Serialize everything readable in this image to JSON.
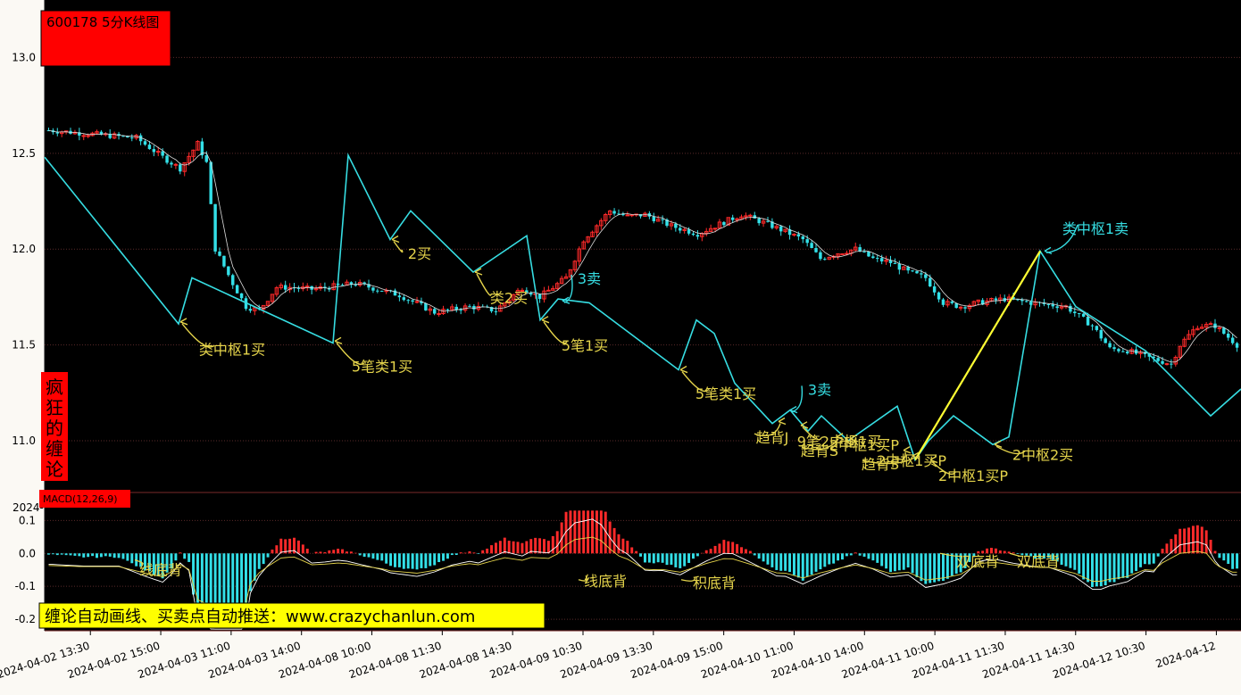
{
  "title_box": {
    "text": "600178 5分K线图"
  },
  "side_badge": {
    "chars": [
      "疯",
      "狂",
      "的",
      "缠",
      "论"
    ]
  },
  "macd_label": {
    "text": "MACD(12,26,9)"
  },
  "overflow_label": "2024-",
  "banner": {
    "text": "缠论自动画线、买卖点自动推送：www.crazychanlun.com"
  },
  "colors": {
    "background": "#000000",
    "up": "#ff2a2a",
    "down": "#33e0e8",
    "stroke": "#36dde2",
    "segment": "#ffff33",
    "buy_label": "#e5d44b",
    "sell_label": "#36dde2",
    "badge": "#ff0000",
    "banner": "#ffff00",
    "grid": "#5a2a2a"
  },
  "chart_data": {
    "type": "candlestick",
    "price_axis": {
      "ticks": [
        11.0,
        11.5,
        12.0,
        12.5,
        13.0
      ],
      "tick_labels": [
        "11.0",
        "11.5",
        "12.0",
        "12.5",
        "13.0"
      ],
      "range": [
        10.73,
        13.3
      ]
    },
    "macd_axis": {
      "ticks": [
        0.1,
        0.0,
        -0.1,
        -0.2
      ],
      "tick_labels": [
        "0.1",
        "0.0",
        "-0.1",
        "-0.2"
      ],
      "range": [
        -0.235,
        0.185
      ]
    },
    "x_tick_labels": [
      "2024-04-02 13:30",
      "2024-04-02 15:00",
      "2024-04-03 11:00",
      "2024-04-03 14:00",
      "2024-04-08 10:00",
      "2024-04-08 11:30",
      "2024-04-08 14:30",
      "2024-04-09 10:30",
      "2024-04-09 13:30",
      "2024-04-09 15:00",
      "2024-04-10 11:00",
      "2024-04-10 14:00",
      "2024-04-11 10:00",
      "2024-04-11 11:30",
      "2024-04-11 14:30",
      "2024-04-12 10:30",
      "2024-04-12"
    ],
    "bar_count": 272,
    "price_pivots": [
      [
        0,
        12.62
      ],
      [
        20,
        12.58
      ],
      [
        26,
        12.48
      ],
      [
        30,
        12.42
      ],
      [
        34,
        12.55
      ],
      [
        36,
        12.45
      ],
      [
        38,
        12.0
      ],
      [
        42,
        11.82
      ],
      [
        45,
        11.7
      ],
      [
        48,
        11.68
      ],
      [
        52,
        11.8
      ],
      [
        55,
        11.8
      ],
      [
        60,
        11.79
      ],
      [
        70,
        11.82
      ],
      [
        80,
        11.76
      ],
      [
        88,
        11.67
      ],
      [
        96,
        11.7
      ],
      [
        102,
        11.68
      ],
      [
        108,
        11.8
      ],
      [
        112,
        11.75
      ],
      [
        118,
        11.85
      ],
      [
        122,
        12.05
      ],
      [
        128,
        12.2
      ],
      [
        132,
        12.17
      ],
      [
        136,
        12.18
      ],
      [
        142,
        12.12
      ],
      [
        148,
        12.08
      ],
      [
        154,
        12.14
      ],
      [
        158,
        12.18
      ],
      [
        164,
        12.13
      ],
      [
        172,
        12.05
      ],
      [
        176,
        11.95
      ],
      [
        180,
        11.98
      ],
      [
        184,
        12.0
      ],
      [
        188,
        11.95
      ],
      [
        192,
        11.93
      ],
      [
        196,
        11.88
      ],
      [
        200,
        11.85
      ],
      [
        204,
        11.72
      ],
      [
        208,
        11.7
      ],
      [
        212,
        11.72
      ],
      [
        218,
        11.74
      ],
      [
        224,
        11.72
      ],
      [
        232,
        11.7
      ],
      [
        238,
        11.6
      ],
      [
        242,
        11.48
      ],
      [
        246,
        11.47
      ],
      [
        250,
        11.44
      ],
      [
        256,
        11.4
      ],
      [
        258,
        11.5
      ],
      [
        262,
        11.6
      ],
      [
        266,
        11.6
      ],
      [
        271,
        11.5
      ]
    ],
    "strokes": [
      [
        50,
        12.48
      ],
      [
        200,
        11.61
      ],
      [
        215,
        11.85
      ],
      [
        373,
        11.51
      ],
      [
        390,
        12.49
      ],
      [
        437,
        12.05
      ],
      [
        460,
        12.2
      ],
      [
        530,
        11.88
      ],
      [
        590,
        12.07
      ],
      [
        605,
        11.63
      ],
      [
        625,
        11.74
      ],
      [
        660,
        11.72
      ],
      [
        760,
        11.37
      ],
      [
        780,
        11.63
      ],
      [
        800,
        11.56
      ],
      [
        823,
        11.3
      ],
      [
        865,
        11.09
      ],
      [
        885,
        11.16
      ],
      [
        905,
        11.05
      ],
      [
        920,
        11.13
      ],
      [
        950,
        11.0
      ],
      [
        1005,
        11.18
      ],
      [
        1025,
        10.9
      ],
      [
        1040,
        11.0
      ],
      [
        1068,
        11.13
      ],
      [
        1112,
        10.98
      ],
      [
        1130,
        11.02
      ],
      [
        1165,
        11.99
      ],
      [
        1205,
        11.7
      ],
      [
        1283,
        11.47
      ],
      [
        1356,
        11.13
      ],
      [
        1390,
        11.27
      ]
    ],
    "segments": [
      [
        1025,
        10.9
      ],
      [
        1165,
        11.99
      ]
    ],
    "annotations": [
      {
        "text": "类中枢1买",
        "color": "buy",
        "x": 200,
        "y": 11.62,
        "tx": 260,
        "ty": 11.45
      },
      {
        "text": "5笔类1买",
        "color": "buy",
        "x": 373,
        "y": 11.52,
        "tx": 428,
        "ty": 11.36
      },
      {
        "text": "2买",
        "color": "buy",
        "x": 437,
        "y": 12.05,
        "tx": 470,
        "ty": 11.95
      },
      {
        "text": "类2买",
        "color": "buy",
        "x": 530,
        "y": 11.88,
        "tx": 570,
        "ty": 11.72
      },
      {
        "text": "3卖",
        "color": "sell",
        "x": 628,
        "y": 11.73,
        "tx": 660,
        "ty": 11.82
      },
      {
        "text": "5笔1买",
        "color": "buy",
        "x": 605,
        "y": 11.63,
        "tx": 655,
        "ty": 11.47
      },
      {
        "text": "5笔类1买",
        "color": "buy",
        "x": 760,
        "y": 11.37,
        "tx": 813,
        "ty": 11.22
      },
      {
        "text": "3卖",
        "color": "sell",
        "x": 883,
        "y": 11.16,
        "tx": 918,
        "ty": 11.24
      },
      {
        "text": "趋背J",
        "color": "buy",
        "x": 870,
        "y": 11.1,
        "tx": 865,
        "ty": 10.99
      },
      {
        "text": "9笔2中枢1买",
        "color": "buy",
        "x": 895,
        "y": 11.08,
        "tx": 940,
        "ty": 10.97
      },
      {
        "text": "趋背S",
        "color": "buy",
        "x": 935,
        "y": 11.02,
        "tx": 918,
        "ty": 10.92
      },
      {
        "text": "2中枢1买P",
        "color": "buy",
        "x": 950,
        "y": 11.01,
        "tx": 968,
        "ty": 10.95
      },
      {
        "text": "2中枢1买P",
        "color": "buy",
        "x": 1010,
        "y": 10.95,
        "tx": 1021,
        "ty": 10.87
      },
      {
        "text": "趋背S",
        "color": "buy",
        "x": 1020,
        "y": 10.92,
        "tx": 986,
        "ty": 10.85
      },
      {
        "text": "2中枢1买P",
        "color": "buy",
        "x": 1040,
        "y": 10.9,
        "tx": 1090,
        "ty": 10.79
      },
      {
        "text": "2中枢2买",
        "color": "buy",
        "x": 1112,
        "y": 10.98,
        "tx": 1168,
        "ty": 10.9
      },
      {
        "text": "类中枢1卖",
        "color": "sell",
        "x": 1168,
        "y": 11.99,
        "tx": 1227,
        "ty": 12.08
      }
    ],
    "macd_annotations": [
      {
        "text": "线底背",
        "x": 148,
        "y": -0.02,
        "tx": 180,
        "ty": -0.065
      },
      {
        "text": "线底背",
        "x": 645,
        "y": -0.08,
        "tx": 678,
        "ty": -0.1
      },
      {
        "text": "积底背",
        "x": 760,
        "y": -0.08,
        "tx": 800,
        "ty": -0.105
      },
      {
        "text": "双底背",
        "x": 1050,
        "y": 0.0,
        "tx": 1095,
        "ty": -0.04
      },
      {
        "text": "双底背",
        "x": 1128,
        "y": 0.0,
        "tx": 1163,
        "ty": -0.04
      }
    ]
  }
}
